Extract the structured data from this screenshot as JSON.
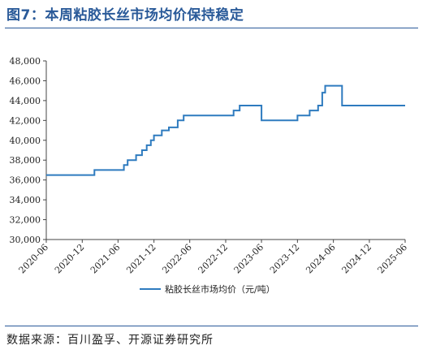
{
  "figure": {
    "title": "图7：本周粘胶长丝市场均价保持稳定",
    "source": "数据来源：百川盈孚、开源证券研究所"
  },
  "chart_data": {
    "type": "line",
    "title": "",
    "xlabel": "",
    "ylabel": "",
    "ylim": [
      30000,
      48000
    ],
    "yticks": [
      30000,
      32000,
      34000,
      36000,
      38000,
      40000,
      42000,
      44000,
      46000,
      48000
    ],
    "ytick_labels": [
      "30,000",
      "32,000",
      "34,000",
      "36,000",
      "38,000",
      "40,000",
      "42,000",
      "44,000",
      "46,000",
      "48,000"
    ],
    "xlim": [
      "2020-06-01",
      "2025-06-01"
    ],
    "xtick_labels": [
      "2020-06",
      "2020-12",
      "2021-06",
      "2021-12",
      "2022-06",
      "2022-12",
      "2023-06",
      "2023-12",
      "2024-06",
      "2024-12",
      "2025-06"
    ],
    "grid": false,
    "legend_position": "bottom",
    "line_color": "#2e7bbf",
    "series": [
      {
        "name": "粘胶长丝市场均价（元/吨）",
        "step": true,
        "points": [
          [
            "2020-06-01",
            36500
          ],
          [
            "2021-02-01",
            37000
          ],
          [
            "2021-07-01",
            37500
          ],
          [
            "2021-07-20",
            38000
          ],
          [
            "2021-09-01",
            38500
          ],
          [
            "2021-10-01",
            39000
          ],
          [
            "2021-10-25",
            39500
          ],
          [
            "2021-11-15",
            40000
          ],
          [
            "2021-12-01",
            40500
          ],
          [
            "2022-01-10",
            41000
          ],
          [
            "2022-02-15",
            41300
          ],
          [
            "2022-04-01",
            42000
          ],
          [
            "2022-05-01",
            42500
          ],
          [
            "2023-01-10",
            43000
          ],
          [
            "2023-02-10",
            43500
          ],
          [
            "2023-06-01",
            42000
          ],
          [
            "2023-12-01",
            42500
          ],
          [
            "2024-02-01",
            43000
          ],
          [
            "2024-03-15",
            43500
          ],
          [
            "2024-04-05",
            44800
          ],
          [
            "2024-04-20",
            45500
          ],
          [
            "2024-07-15",
            43500
          ],
          [
            "2025-06-01",
            43500
          ]
        ]
      }
    ]
  }
}
